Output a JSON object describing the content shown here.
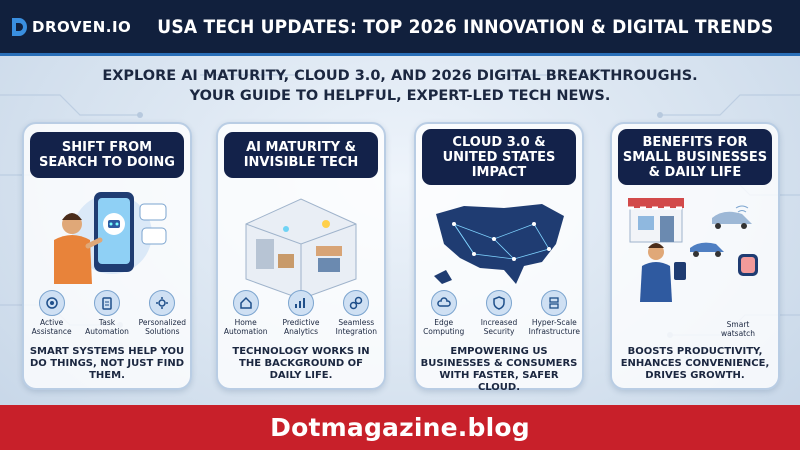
{
  "header": {
    "logo_text": "DROVEN.IO",
    "title": "USA TECH UPDATES: TOP 2026 INNOVATION & DIGITAL TRENDS"
  },
  "intro": {
    "line1": "EXPLORE AI MATURITY, CLOUD 3.0, AND 2026 DIGITAL BREAKTHROUGHS.",
    "line2": "YOUR GUIDE TO HELPFUL, EXPERT-LED TECH NEWS."
  },
  "cards": [
    {
      "title": "SHIFT FROM SEARCH TO DOING",
      "icons": [
        {
          "label": "Active Assistance",
          "icon": "target-icon"
        },
        {
          "label": "Task Automation",
          "icon": "clipboard-icon"
        },
        {
          "label": "Personalized Solutions",
          "icon": "gear-icon"
        }
      ],
      "footer": "SMART SYSTEMS HELP YOU DO THINGS, NOT JUST FIND THEM."
    },
    {
      "title": "AI MATURITY & INVISIBLE TECH",
      "icons": [
        {
          "label": "Home Automation",
          "icon": "home-icon"
        },
        {
          "label": "Predictive Analytics",
          "icon": "chart-icon"
        },
        {
          "label": "Seamless Integration",
          "icon": "link-icon"
        }
      ],
      "footer": "TECHNOLOGY WORKS IN THE BACKGROUND OF DAILY LIFE."
    },
    {
      "title": "CLOUD 3.0 & UNITED STATES IMPACT",
      "icons": [
        {
          "label": "Edge Computing",
          "icon": "cloud-icon"
        },
        {
          "label": "Increased Security",
          "icon": "shield-icon"
        },
        {
          "label": "Hyper-Scale Infrastructure",
          "icon": "server-icon"
        }
      ],
      "footer": "EMPOWERING US BUSINESSES & CONSUMERS WITH FASTER, SAFER CLOUD."
    },
    {
      "title": "BENEFITS FOR SMALL BUSINESSES & DAILY LIFE",
      "icons": [
        {
          "label": "Smart watsatch",
          "icon": "smartwatch-icon"
        }
      ],
      "footer": "BOOSTS PRODUCTIVITY, ENHANCES CONVENIENCE, DRIVES GROWTH."
    }
  ],
  "footer": {
    "site": "Dotmagazine.blog"
  },
  "colors": {
    "header_bg": "#11203d",
    "card_head_bg": "#13224a",
    "footer_bg": "#c8202a"
  }
}
